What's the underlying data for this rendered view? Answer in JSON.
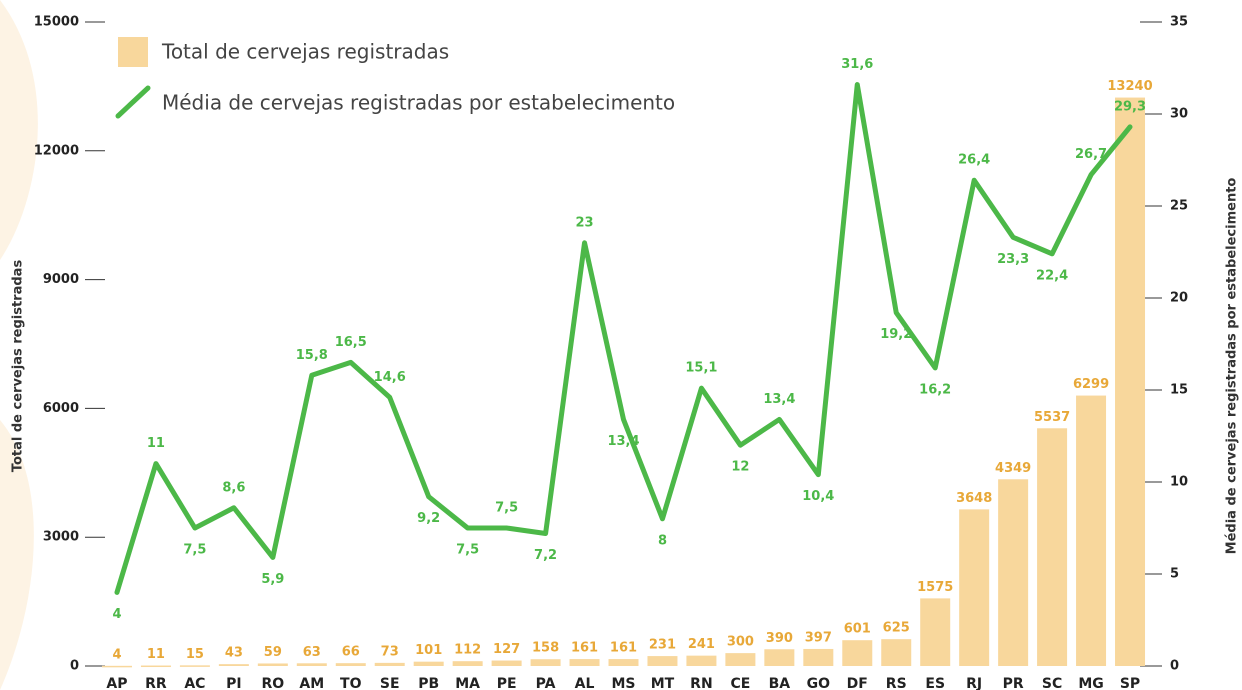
{
  "chart_data": {
    "type": "bar-line",
    "categories": [
      "AP",
      "RR",
      "AC",
      "PI",
      "RO",
      "AM",
      "TO",
      "SE",
      "PB",
      "MA",
      "PE",
      "PA",
      "AL",
      "MS",
      "MT",
      "RN",
      "CE",
      "BA",
      "GO",
      "DF",
      "RS",
      "ES",
      "RJ",
      "PR",
      "SC",
      "MG",
      "SP"
    ],
    "series": [
      {
        "name": "Total de cervejas registradas",
        "type": "bar",
        "color": "#f8d79c",
        "label_color": "#e8a838",
        "values": [
          4,
          11,
          15,
          43,
          59,
          63,
          66,
          73,
          101,
          112,
          127,
          158,
          161,
          161,
          231,
          241,
          300,
          390,
          397,
          601,
          625,
          1575,
          3648,
          4349,
          5537,
          6299,
          13240
        ]
      },
      {
        "name": "Média de cervejas registradas por estabelecimento",
        "type": "line",
        "axis": "y2",
        "color": "#4cb848",
        "label_color": "#4cb848",
        "values": [
          4,
          11,
          7.5,
          8.6,
          5.9,
          15.8,
          16.5,
          14.6,
          9.2,
          7.5,
          7.5,
          7.2,
          23,
          13.4,
          8,
          15.1,
          12,
          13.4,
          10.4,
          31.6,
          19.2,
          16.2,
          26.4,
          23.3,
          22.4,
          26.7,
          29.3
        ],
        "value_labels": [
          "4",
          "11",
          "7,5",
          "8,6",
          "5,9",
          "15,8",
          "16,5",
          "14,6",
          "9,2",
          "7,5",
          "7,5",
          "7,2",
          "23",
          "13,4",
          "8",
          "15,1",
          "12",
          "13,4",
          "10,4",
          "31,6",
          "19,2",
          "16,2",
          "26,4",
          "23,3",
          "22,4",
          "26,7",
          "29,3"
        ]
      }
    ],
    "ylabel": "Total de cervejas registradas",
    "y2label": "Média de cervejas registradas por estabelecimento",
    "ylim": [
      0,
      15000
    ],
    "yticks": [
      0,
      3000,
      6000,
      9000,
      12000,
      15000
    ],
    "y2lim": [
      0,
      35
    ],
    "y2ticks": [
      0,
      5,
      10,
      15,
      20,
      25,
      30,
      35
    ],
    "legend": "top-left"
  }
}
